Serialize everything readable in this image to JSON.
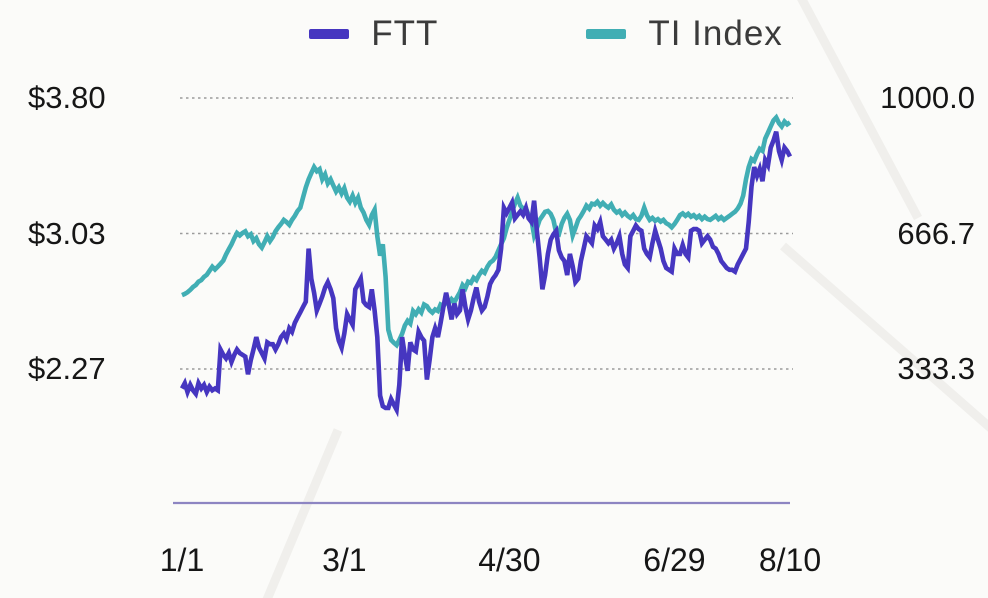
{
  "legend": {
    "items": [
      {
        "label": "FTT"
      },
      {
        "label": "TI Index"
      }
    ]
  },
  "chart_data": {
    "type": "line",
    "title": "",
    "grid": "dotted-horizontal",
    "legend_position": "top-center",
    "days_total": 221,
    "x_ticks": {
      "labels": [
        "1/1",
        "3/1",
        "4/30",
        "6/29",
        "8/10"
      ],
      "days": [
        0,
        59,
        119,
        179,
        221
      ]
    },
    "left_axis": {
      "unit": "USD",
      "ticks": [
        {
          "label": "$3.80",
          "value": 3.8
        },
        {
          "label": "$3.03",
          "value": 3.03
        },
        {
          "label": "$2.27",
          "value": 2.27
        }
      ]
    },
    "right_axis": {
      "unit": "index",
      "ticks": [
        {
          "label": "1000.0",
          "value": 1000.0
        },
        {
          "label": "666.7",
          "value": 666.7
        },
        {
          "label": "333.3",
          "value": 333.3
        }
      ]
    },
    "colors": {
      "ftt": "#4636c0",
      "ti_index": "#41aeb4",
      "gridline": "#9b9b9b",
      "baseline": "#8d85c2",
      "text": "#161616",
      "legend_text": "#3b3b3b"
    },
    "series": [
      {
        "name": "FTT",
        "axis": "left",
        "color": "#4636c0",
        "values": [
          2.16,
          2.19,
          2.14,
          2.18,
          2.15,
          2.13,
          2.19,
          2.16,
          2.18,
          2.14,
          2.17,
          2.15,
          2.16,
          2.15,
          2.38,
          2.35,
          2.33,
          2.36,
          2.31,
          2.35,
          2.38,
          2.36,
          2.35,
          2.34,
          2.24,
          2.32,
          2.38,
          2.45,
          2.39,
          2.36,
          2.33,
          2.42,
          2.41,
          2.41,
          2.38,
          2.41,
          2.45,
          2.47,
          2.44,
          2.5,
          2.48,
          2.53,
          2.56,
          2.59,
          2.62,
          2.65,
          2.95,
          2.78,
          2.7,
          2.6,
          2.64,
          2.68,
          2.73,
          2.76,
          2.72,
          2.67,
          2.5,
          2.43,
          2.39,
          2.47,
          2.58,
          2.55,
          2.52,
          2.72,
          2.75,
          2.78,
          2.65,
          2.63,
          2.62,
          2.72,
          2.6,
          2.45,
          2.12,
          2.06,
          2.05,
          2.05,
          2.1,
          2.07,
          2.04,
          2.18,
          2.45,
          2.35,
          2.26,
          2.42,
          2.38,
          2.37,
          2.48,
          2.45,
          2.43,
          2.21,
          2.32,
          2.45,
          2.5,
          2.45,
          2.53,
          2.62,
          2.7,
          2.63,
          2.55,
          2.64,
          2.58,
          2.6,
          2.72,
          2.62,
          2.55,
          2.6,
          2.67,
          2.73,
          2.65,
          2.6,
          2.62,
          2.68,
          2.75,
          2.78,
          2.8,
          2.83,
          2.95,
          3.18,
          3.15,
          3.18,
          3.21,
          3.12,
          3.14,
          3.16,
          3.14,
          3.18,
          3.12,
          3.1,
          3.22,
          3.05,
          2.9,
          2.72,
          2.8,
          2.92,
          3.0,
          3.03,
          3.05,
          2.94,
          2.9,
          2.88,
          2.8,
          2.92,
          2.85,
          2.76,
          2.78,
          2.88,
          2.95,
          3.02,
          3.0,
          2.98,
          3.08,
          3.06,
          3.1,
          3.02,
          3.0,
          2.98,
          3.0,
          2.95,
          2.98,
          3.02,
          2.92,
          2.86,
          2.84,
          3.02,
          3.05,
          3.08,
          3.06,
          3.05,
          2.95,
          2.92,
          2.9,
          2.98,
          3.05,
          3.0,
          2.95,
          2.88,
          2.84,
          2.83,
          2.82,
          2.95,
          2.92,
          2.92,
          2.97,
          2.92,
          2.9,
          3.05,
          3.06,
          3.06,
          3.05,
          2.98,
          3.0,
          3.02,
          3.0,
          2.96,
          2.95,
          2.92,
          2.88,
          2.86,
          2.84,
          2.83,
          2.83,
          2.82,
          2.86,
          2.89,
          2.92,
          2.95,
          3.1,
          3.3,
          3.41,
          3.36,
          3.4,
          3.33,
          3.45,
          3.42,
          3.52,
          3.56,
          3.61,
          3.5,
          3.45,
          3.52,
          3.5,
          3.47
        ]
      },
      {
        "name": "TI Index",
        "axis": "right",
        "color": "#41aeb4",
        "values": [
          515,
          518,
          522,
          528,
          535,
          540,
          548,
          552,
          560,
          565,
          575,
          585,
          578,
          585,
          592,
          600,
          615,
          628,
          640,
          655,
          668,
          662,
          668,
          672,
          660,
          665,
          648,
          655,
          640,
          632,
          645,
          660,
          648,
          658,
          672,
          682,
          690,
          700,
          695,
          688,
          700,
          710,
          722,
          730,
          755,
          780,
          800,
          815,
          830,
          820,
          825,
          800,
          812,
          790,
          800,
          785,
          770,
          780,
          765,
          778,
          755,
          745,
          760,
          742,
          755,
          730,
          718,
          700,
          688,
          712,
          725,
          660,
          612,
          640,
          560,
          430,
          405,
          398,
          392,
          405,
          420,
          440,
          452,
          445,
          476,
          468,
          480,
          472,
          492,
          488,
          478,
          472,
          480,
          476,
          492,
          488,
          498,
          495,
          505,
          498,
          510,
          522,
          540,
          532,
          548,
          545,
          558,
          552,
          565,
          575,
          570,
          585,
          595,
          600,
          609,
          625,
          640,
          655,
          680,
          700,
          720,
          740,
          755,
          735,
          728,
          729,
          712,
          700,
          662,
          680,
          700,
          710,
          720,
          722,
          715,
          700,
          668,
          665,
          690,
          705,
          715,
          700,
          662,
          680,
          700,
          710,
          722,
          735,
          728,
          740,
          738,
          745,
          735,
          742,
          735,
          730,
          738,
          725,
          718,
          722,
          712,
          718,
          710,
          705,
          712,
          702,
          700,
          710,
          730,
          712,
          700,
          705,
          698,
          702,
          696,
          700,
          692,
          688,
          682,
          690,
          700,
          712,
          716,
          710,
          715,
          708,
          712,
          705,
          710,
          702,
          708,
          702,
          700,
          705,
          710,
          702,
          707,
          700,
          705,
          710,
          715,
          720,
          728,
          740,
          760,
          800,
          830,
          850,
          845,
          862,
          875,
          870,
          900,
          915,
          930,
          945,
          952,
          938,
          930,
          942,
          935,
          940
        ]
      }
    ]
  }
}
